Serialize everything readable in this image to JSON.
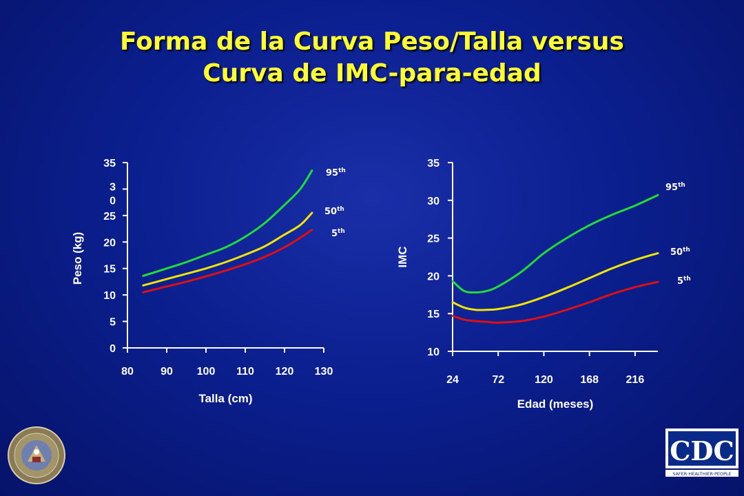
{
  "slide": {
    "title_line1": "Forma de la Curva Peso/Talla versus",
    "title_line2": "Curva de IMC-para-edad"
  },
  "logos": {
    "left_seal": "university-seal",
    "right_logo_text": "CDC",
    "right_logo_tagline": "SAFER·HEALTHIER·PEOPLE"
  },
  "colors": {
    "background": "#0b1f8f",
    "title": "#ffff33",
    "p95": "#22dd33",
    "p50": "#f2e600",
    "p5": "#e01010",
    "axis": "#ffffff"
  },
  "chart_data": [
    {
      "type": "line",
      "xlabel": "Talla (cm)",
      "ylabel": "Peso (kg)",
      "xlim": [
        80,
        130
      ],
      "ylim": [
        0,
        35
      ],
      "x_ticks": [
        "80",
        "90",
        "100",
        "110",
        "120",
        "130"
      ],
      "y_ticks": [
        "0",
        "5",
        "10",
        "15",
        "20",
        "25",
        "3\n0",
        "35"
      ],
      "grid": false,
      "series": [
        {
          "name": "95th",
          "label": "95",
          "sup": "th",
          "color": "#22dd33",
          "x": [
            84,
            90,
            95,
            100,
            105,
            110,
            115,
            120,
            124,
            127
          ],
          "y": [
            13.6,
            15.0,
            16.2,
            17.6,
            19.0,
            21.0,
            23.6,
            27.0,
            30.0,
            33.5
          ]
        },
        {
          "name": "50th",
          "label": "50",
          "sup": "th",
          "color": "#f2e600",
          "x": [
            84,
            90,
            95,
            100,
            105,
            110,
            115,
            120,
            124,
            127
          ],
          "y": [
            11.8,
            13.0,
            14.0,
            15.0,
            16.2,
            17.6,
            19.2,
            21.4,
            23.2,
            25.5
          ]
        },
        {
          "name": "5th",
          "label": "5",
          "sup": "th",
          "color": "#e01010",
          "x": [
            84,
            90,
            95,
            100,
            105,
            110,
            115,
            120,
            124,
            127
          ],
          "y": [
            10.5,
            11.6,
            12.5,
            13.5,
            14.6,
            15.8,
            17.2,
            19.0,
            20.8,
            22.3
          ]
        }
      ]
    },
    {
      "type": "line",
      "xlabel": "Edad (meses)",
      "ylabel": "IMC",
      "xlim": [
        24,
        240
      ],
      "ylim": [
        10,
        35
      ],
      "x_ticks": [
        "24",
        "72",
        "120",
        "168",
        "216"
      ],
      "y_ticks": [
        "10",
        "15",
        "20",
        "25",
        "30",
        "35"
      ],
      "grid": false,
      "series": [
        {
          "name": "95th",
          "label": "95",
          "sup": "th",
          "color": "#22dd33",
          "x": [
            24,
            36,
            48,
            60,
            72,
            96,
            120,
            144,
            168,
            192,
            216,
            240
          ],
          "y": [
            19.3,
            18.0,
            17.8,
            18.0,
            18.6,
            20.5,
            23.0,
            25.0,
            26.7,
            28.1,
            29.3,
            30.7
          ]
        },
        {
          "name": "50th",
          "label": "50",
          "sup": "th",
          "color": "#f2e600",
          "x": [
            24,
            36,
            48,
            60,
            72,
            96,
            120,
            144,
            168,
            192,
            216,
            240
          ],
          "y": [
            16.5,
            15.8,
            15.5,
            15.5,
            15.6,
            16.2,
            17.2,
            18.4,
            19.7,
            21.0,
            22.1,
            23.0
          ]
        },
        {
          "name": "5th",
          "label": "5",
          "sup": "th",
          "color": "#e01010",
          "x": [
            24,
            36,
            48,
            60,
            72,
            96,
            120,
            144,
            168,
            192,
            216,
            240
          ],
          "y": [
            14.7,
            14.2,
            14.0,
            13.9,
            13.8,
            14.0,
            14.6,
            15.5,
            16.5,
            17.6,
            18.5,
            19.2
          ]
        }
      ]
    }
  ]
}
